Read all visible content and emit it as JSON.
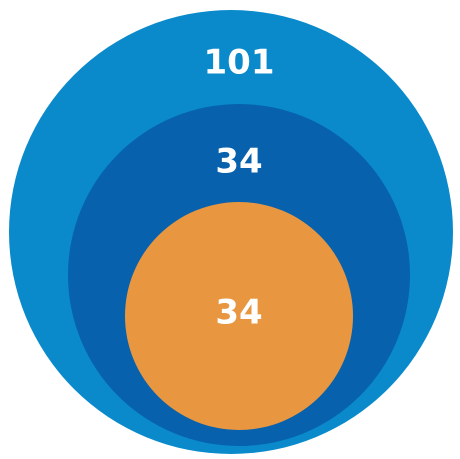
{
  "nodes": [
    {
      "label": "101"
    },
    {
      "label": "34"
    },
    {
      "label": "34"
    }
  ]
}
